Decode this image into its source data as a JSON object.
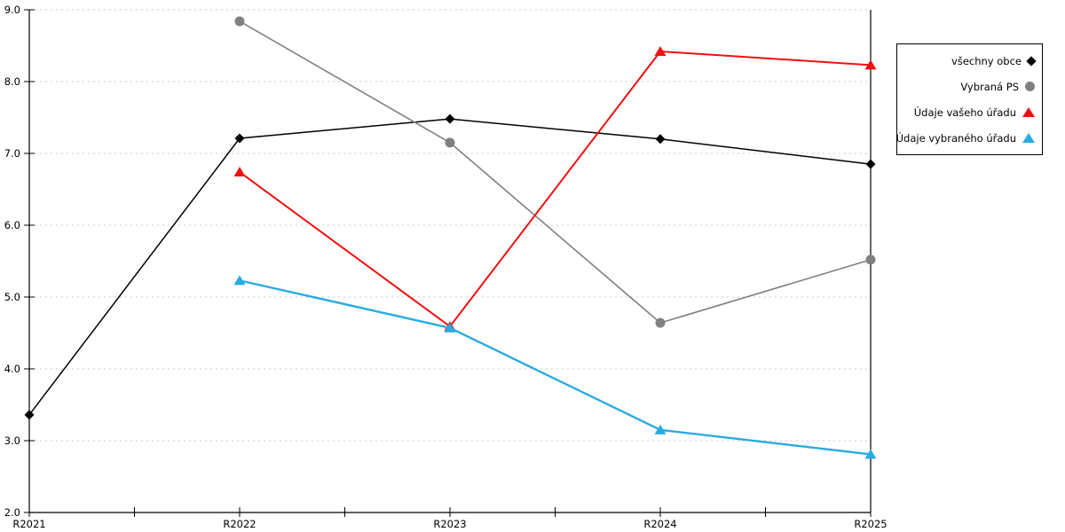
{
  "chart_data": {
    "type": "line",
    "title": "",
    "xlabel": "",
    "ylabel": "",
    "categories": [
      "R2021",
      "R2022",
      "R2023",
      "R2024",
      "R2025"
    ],
    "series": [
      {
        "name": "všechny obce",
        "marker": "diamond",
        "color": "#000000",
        "values": [
          3.36,
          7.21,
          7.48,
          7.2,
          6.85
        ]
      },
      {
        "name": "Vybraná PS",
        "marker": "circle",
        "color": "#808080",
        "values": [
          null,
          8.84,
          7.15,
          4.64,
          5.52
        ]
      },
      {
        "name": "Údaje vašeho úřadu",
        "marker": "triangle",
        "color": "#F01010",
        "values": [
          null,
          6.74,
          4.59,
          8.42,
          8.23
        ]
      },
      {
        "name": "Údaje vybraného úřadu",
        "marker": "triangle",
        "color": "#29ABE2",
        "values": [
          null,
          5.23,
          4.57,
          3.15,
          2.81
        ]
      }
    ],
    "ylim": [
      2.0,
      9.0
    ],
    "y_tick_step": 1.0,
    "y_tick_labels": [
      "2.0",
      "3.0",
      "4.0",
      "5.0",
      "6.0",
      "7.0",
      "8.0",
      "9.0"
    ],
    "grid": true,
    "gridline_color": "#C9C9C9",
    "axis_color": "#000000",
    "legend_position": "right",
    "minor_x_ticks_per_interval": 2
  }
}
